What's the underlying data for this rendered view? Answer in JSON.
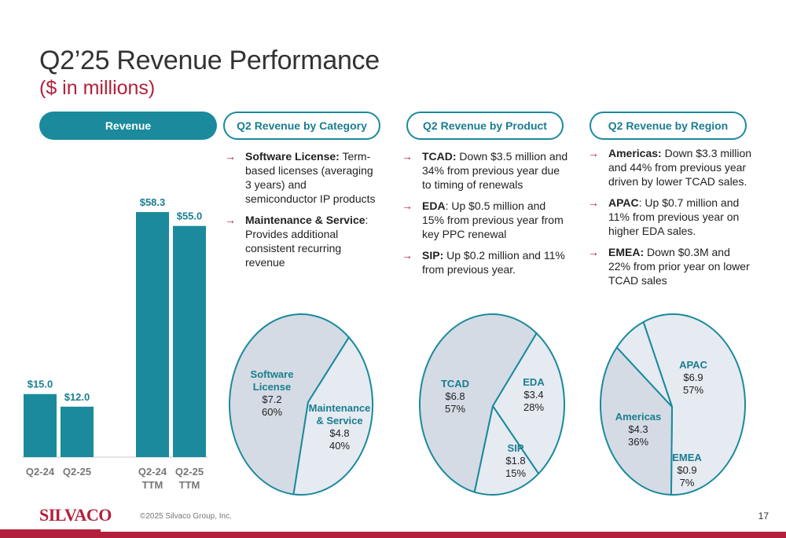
{
  "header": {
    "title": "Q2’25 Revenue Performance",
    "subtitle": "($ in millions)"
  },
  "pills": {
    "revenue": "Revenue",
    "category": "Q2 Revenue by Category",
    "product": "Q2 Revenue by Product",
    "region": "Q2 Revenue by Region"
  },
  "category_bullets": [
    {
      "bold": "Software License:",
      "text": " Term-based licenses (averaging 3 years) and semiconductor IP products"
    },
    {
      "bold": "Maintenance & Service",
      "text": ": Provides additional consistent recurring revenue"
    }
  ],
  "product_bullets": [
    {
      "bold": "TCAD:",
      "text": " Down $3.5 million and 34% from previous year due to timing of renewals"
    },
    {
      "bold": "EDA",
      "text": ": Up $0.5 million and 15% from previous year from key PPC renewal"
    },
    {
      "bold": "SIP:",
      "text": " Up $0.2 million and 11% from previous year."
    }
  ],
  "region_bullets": [
    {
      "bold": "Americas:",
      "text": " Down $3.3 million and 44% from previous year driven by lower TCAD sales."
    },
    {
      "bold": "APAC",
      "text": ": Up $0.7 million and 11% from previous year on higher EDA sales."
    },
    {
      "bold": "EMEA:",
      "text": " Down $0.3M and 22% from prior year on lower TCAD sales"
    }
  ],
  "colors": {
    "accent": "#1a8a9c",
    "brand_red": "#b3203b",
    "pie_fill_dark": "#d4dbe4",
    "pie_fill_light": "#e6eaf1"
  },
  "chart_data": [
    {
      "type": "bar",
      "categories": [
        "Q2-24",
        "Q2-25",
        "Q2-24 TTM",
        "Q2-25 TTM"
      ],
      "values": [
        15.0,
        12.0,
        58.3,
        55.0
      ],
      "value_labels": [
        "$15.0",
        "$12.0",
        "$58.3",
        "$55.0"
      ],
      "tick_lines": [
        [
          "Q2-24"
        ],
        [
          "Q2-25"
        ],
        [
          "Q2-24",
          "TTM"
        ],
        [
          "Q2-25",
          "TTM"
        ]
      ]
    },
    {
      "type": "pie",
      "slices": [
        {
          "label": "Software License",
          "value": 7.2,
          "value_label": "$7.2",
          "pct_label": "60%"
        },
        {
          "label": "Maintenance & Service",
          "value": 4.8,
          "value_label": "$4.8",
          "pct_label": "40%"
        }
      ]
    },
    {
      "type": "pie",
      "slices": [
        {
          "label": "TCAD",
          "value": 6.8,
          "value_label": "$6.8",
          "pct_label": "57%"
        },
        {
          "label": "EDA",
          "value": 3.4,
          "value_label": "$3.4",
          "pct_label": "28%"
        },
        {
          "label": "SIP",
          "value": 1.8,
          "value_label": "$1.8",
          "pct_label": "15%"
        }
      ]
    },
    {
      "type": "pie",
      "slices": [
        {
          "label": "APAC",
          "value": 6.9,
          "value_label": "$6.9",
          "pct_label": "57%"
        },
        {
          "label": "Americas",
          "value": 4.3,
          "value_label": "$4.3",
          "pct_label": "36%"
        },
        {
          "label": "EMEA",
          "value": 0.9,
          "value_label": "$0.9",
          "pct_label": "7%"
        }
      ]
    }
  ],
  "footer": {
    "logo": "SILVACO",
    "copyright": "©2025 Silvaco Group, Inc.",
    "page": "17"
  }
}
